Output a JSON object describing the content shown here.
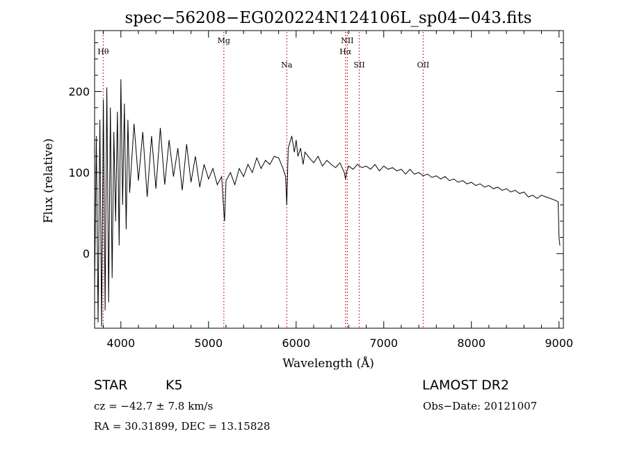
{
  "chart_data": {
    "type": "line",
    "title": "spec−56208−EG020224N124106L_sp04−043.fits",
    "xlabel": "Wavelength (Å)",
    "ylabel": "Flux (relative)",
    "xlim": [
      3700,
      9050
    ],
    "ylim": [
      -92,
      275
    ],
    "x_ticks": [
      4000,
      5000,
      6000,
      7000,
      8000,
      9000
    ],
    "y_ticks": [
      0,
      100,
      200
    ],
    "grid": false,
    "legend": "none",
    "line_color": "#000000",
    "marker_color": "#cc0000",
    "lines": [
      {
        "label": "Hθ",
        "wavelength": 3798,
        "row": 1
      },
      {
        "label": "Mg",
        "wavelength": 5175,
        "row": 0
      },
      {
        "label": "Na",
        "wavelength": 5893,
        "row": 2
      },
      {
        "label": "NII",
        "wavelength": 6584,
        "row": 0
      },
      {
        "label": "Hα",
        "wavelength": 6563,
        "row": 1
      },
      {
        "label": "SII",
        "wavelength": 6720,
        "row": 2
      },
      {
        "label": "OII",
        "wavelength": 7450,
        "row": 2
      }
    ],
    "series": [
      {
        "x": [
          3700,
          3720,
          3740,
          3760,
          3780,
          3800,
          3820,
          3840,
          3860,
          3880,
          3900,
          3920,
          3940,
          3960,
          3980,
          4000,
          4020,
          4040,
          4060,
          4080,
          4100,
          4150,
          4200,
          4250,
          4300,
          4350,
          4400,
          4450,
          4500,
          4550,
          4600,
          4650,
          4700,
          4750,
          4800,
          4850,
          4900,
          4950,
          5000,
          5050,
          5100,
          5150,
          5170,
          5183,
          5200,
          5250,
          5300,
          5350,
          5400,
          5450,
          5500,
          5550,
          5600,
          5650,
          5700,
          5750,
          5800,
          5850,
          5880,
          5893,
          5910,
          5950,
          5980,
          6000,
          6020,
          6050,
          6080,
          6100,
          6150,
          6200,
          6250,
          6300,
          6350,
          6400,
          6450,
          6500,
          6550,
          6563,
          6580,
          6600,
          6650,
          6700,
          6750,
          6800,
          6850,
          6900,
          6950,
          7000,
          7050,
          7100,
          7150,
          7200,
          7250,
          7300,
          7350,
          7400,
          7450,
          7500,
          7550,
          7600,
          7650,
          7700,
          7750,
          7800,
          7850,
          7900,
          7950,
          8000,
          8050,
          8100,
          8150,
          8200,
          8250,
          8300,
          8350,
          8400,
          8450,
          8500,
          8550,
          8600,
          8650,
          8700,
          8750,
          8800,
          8850,
          8900,
          8950,
          8990,
          9000,
          9010
        ],
        "y": [
          -45,
          145,
          -85,
          165,
          -90,
          190,
          -70,
          205,
          -60,
          180,
          -30,
          150,
          40,
          175,
          10,
          215,
          60,
          185,
          30,
          165,
          75,
          160,
          90,
          150,
          70,
          145,
          80,
          155,
          85,
          140,
          95,
          130,
          78,
          135,
          88,
          120,
          82,
          110,
          92,
          105,
          85,
          95,
          60,
          40,
          90,
          100,
          85,
          105,
          95,
          110,
          100,
          118,
          105,
          115,
          110,
          120,
          118,
          105,
          95,
          60,
          130,
          145,
          125,
          140,
          120,
          130,
          110,
          125,
          118,
          112,
          120,
          108,
          115,
          110,
          106,
          112,
          100,
          92,
          102,
          108,
          104,
          110,
          106,
          108,
          104,
          110,
          102,
          108,
          104,
          106,
          102,
          104,
          98,
          104,
          98,
          100,
          96,
          98,
          94,
          96,
          92,
          95,
          90,
          92,
          88,
          90,
          86,
          88,
          84,
          86,
          82,
          84,
          80,
          82,
          78,
          80,
          76,
          78,
          74,
          76,
          70,
          72,
          68,
          72,
          70,
          68,
          66,
          64,
          20,
          10
        ]
      }
    ]
  },
  "footer": {
    "object_type": "STAR",
    "subclass": "K5",
    "survey": "LAMOST DR2",
    "cz": "cz = −42.7 ± 7.8 km/s",
    "obs_date": "Obs−Date: 20121007",
    "coords": "RA =  30.31899, DEC =  13.15828"
  }
}
